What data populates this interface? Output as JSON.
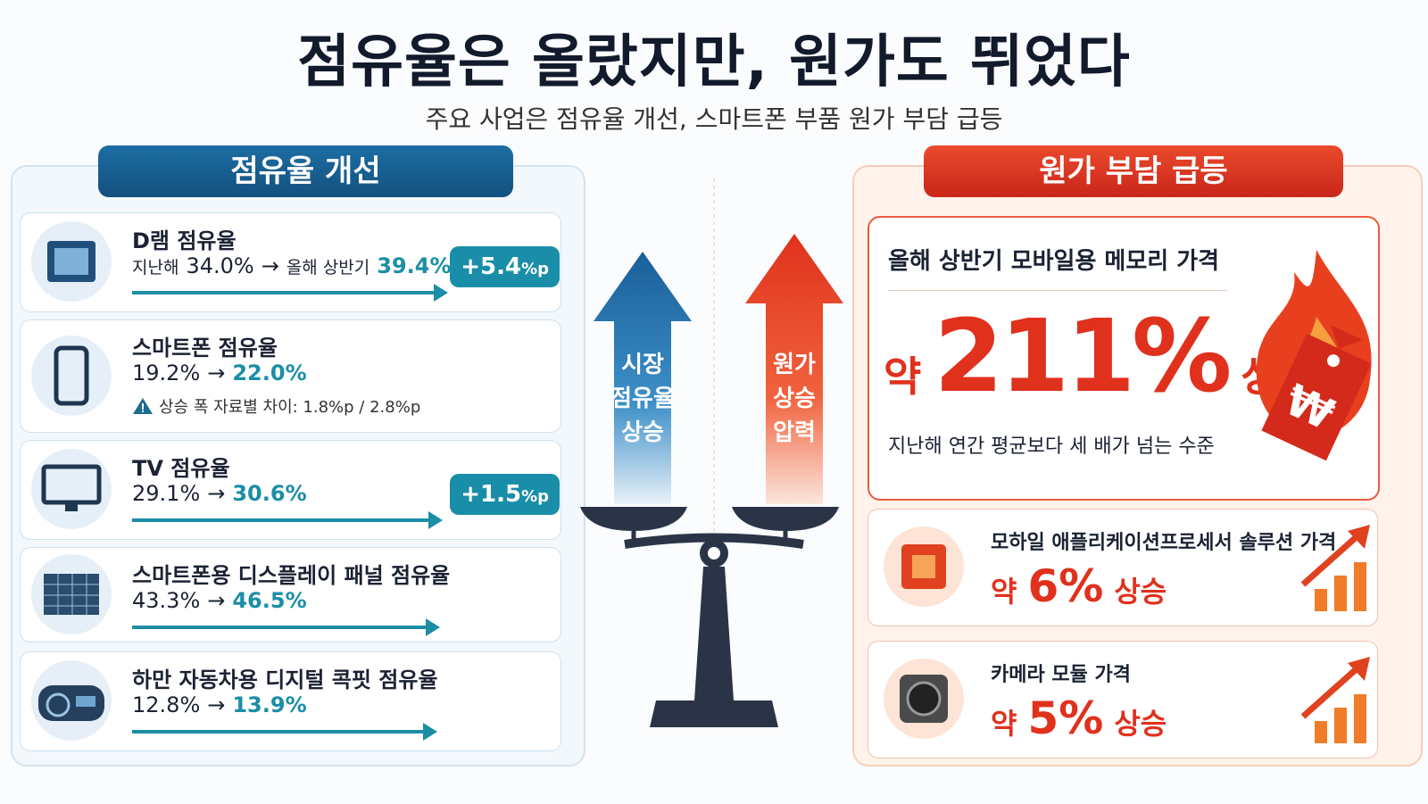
{
  "title": "점유율은 올랐지만, 원가도 뛰었다",
  "subtitle": "주요 사업은 점유율 개선, 스마트폰 부품 원가 부담 급등",
  "left": {
    "heading": "점유율 개선",
    "items": [
      {
        "name": "D램 점유율",
        "before_label": "지난해",
        "before": "34.0%",
        "arrow": "→",
        "after_label": "올해 상반기",
        "after": "39.4%",
        "badge_value": "+5.4",
        "badge_unit": "%p"
      },
      {
        "name": "스마트폰 점유율",
        "before": "19.2%",
        "arrow": "→",
        "after": "22.0%",
        "note": "상승 폭 자료별 차이: 1.8%p / 2.8%p"
      },
      {
        "name": "TV 점유율",
        "before": "29.1%",
        "arrow": "→",
        "after": "30.6%",
        "badge_value": "+1.5",
        "badge_unit": "%p"
      },
      {
        "name": "스마트폰용 디스플레이 패널 점유율",
        "before": "43.3%",
        "arrow": "→",
        "after": "46.5%"
      },
      {
        "name": "하만 자동차용 디지털 콕핏 점유율",
        "before": "12.8%",
        "arrow": "→",
        "after": "13.9%"
      }
    ]
  },
  "center": {
    "left_arrow": [
      "시장",
      "점유율",
      "상승"
    ],
    "right_arrow": [
      "원가",
      "상승",
      "압력"
    ]
  },
  "right": {
    "heading": "원가 부담 급등",
    "main": {
      "title": "올해 상반기 모바일용 메모리 가격",
      "prefix": "약",
      "value": "211%",
      "suffix": "상승",
      "description": "지난해 연간 평균보다 세 배가 넘는 수준",
      "tag": "₩"
    },
    "items": [
      {
        "name": "모하일 애플리케이션프로세서 솔루션 가격",
        "prefix": "약",
        "value": "6%",
        "suffix": "상승"
      },
      {
        "name": "카메라 모듈 가격",
        "prefix": "약",
        "value": "5%",
        "suffix": "상승"
      }
    ]
  }
}
